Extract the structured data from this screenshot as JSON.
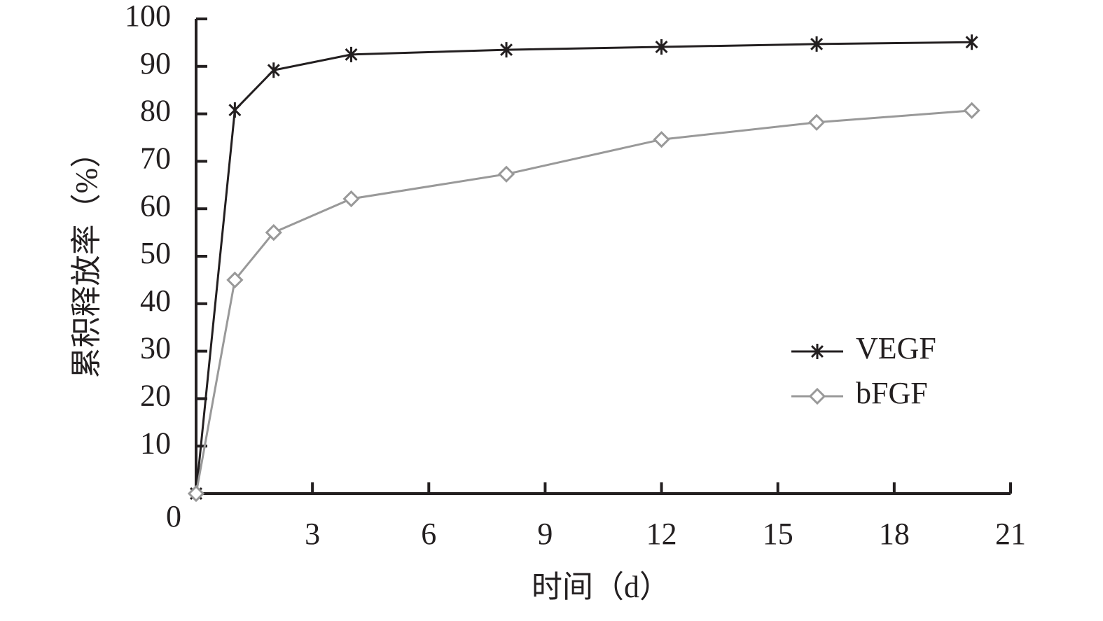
{
  "chart_data": {
    "type": "line",
    "x_label": "时间（d）",
    "y_label": "累积释放率（%）",
    "x": [
      0,
      1,
      2,
      4,
      8,
      12,
      16,
      20
    ],
    "series": [
      {
        "name": "VEGF",
        "color": "#231f20",
        "marker": "asterisk",
        "values": [
          0,
          80.8,
          89.2,
          92.5,
          93.5,
          94.1,
          94.7,
          95.1
        ]
      },
      {
        "name": "bFGF",
        "color": "#999999",
        "marker": "diamond",
        "values": [
          0,
          45,
          55,
          62.1,
          67.3,
          74.6,
          78.2,
          80.7
        ]
      }
    ],
    "xlim": [
      0,
      21
    ],
    "xticks": [
      0,
      3,
      6,
      9,
      12,
      15,
      18,
      21
    ],
    "ylim": [
      0,
      100
    ],
    "yticks": [
      10,
      20,
      30,
      40,
      50,
      60,
      70,
      80,
      90,
      100
    ],
    "grid": false
  }
}
